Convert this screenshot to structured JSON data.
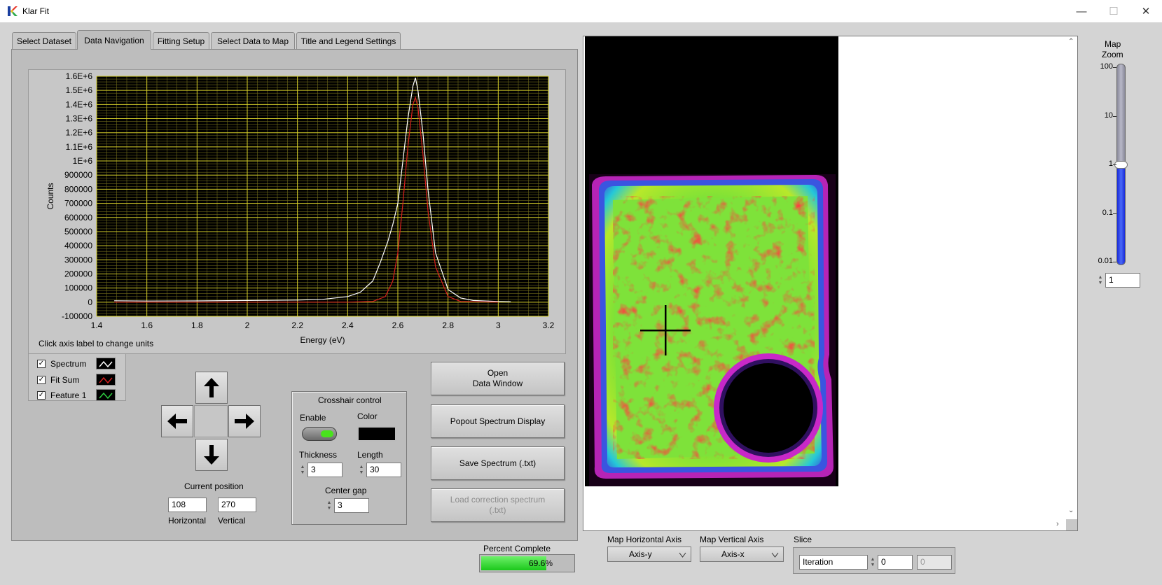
{
  "window": {
    "title": "Klar Fit",
    "minimize": "—",
    "maximize": "☐",
    "close": "✕"
  },
  "tabs": [
    "Select Dataset",
    "Data Navigation",
    "Fitting Setup",
    "Select Data to Map",
    "Title and Legend Settings"
  ],
  "chart_data": {
    "type": "line",
    "xlabel": "Energy (eV)",
    "ylabel": "Counts",
    "xlim": [
      1.4,
      3.2
    ],
    "ylim": [
      -100000,
      1600000
    ],
    "x_ticks": [
      "1.4",
      "1.6",
      "1.8",
      "2",
      "2.2",
      "2.4",
      "2.6",
      "2.8",
      "3",
      "3.2"
    ],
    "y_ticks": [
      "-100000",
      "0",
      "100000",
      "200000",
      "300000",
      "400000",
      "500000",
      "600000",
      "700000",
      "800000",
      "900000",
      "1E+6",
      "1.1E+6",
      "1.2E+6",
      "1.3E+6",
      "1.4E+6",
      "1.5E+6",
      "1.6E+6"
    ],
    "grid": true,
    "series": [
      {
        "name": "Spectrum",
        "color": "#ffffff",
        "x": [
          1.47,
          1.6,
          1.8,
          2.0,
          2.2,
          2.3,
          2.4,
          2.45,
          2.5,
          2.53,
          2.56,
          2.58,
          2.6,
          2.62,
          2.64,
          2.66,
          2.67,
          2.68,
          2.7,
          2.72,
          2.75,
          2.8,
          2.85,
          2.9,
          3.0,
          3.05
        ],
        "y": [
          10000,
          8000,
          9000,
          12000,
          15000,
          20000,
          40000,
          70000,
          150000,
          280000,
          430000,
          550000,
          700000,
          1000000,
          1300000,
          1530000,
          1590000,
          1500000,
          1200000,
          800000,
          350000,
          90000,
          30000,
          12000,
          5000,
          3000
        ]
      },
      {
        "name": "Fit Sum",
        "color": "#d81e1e",
        "x": [
          1.47,
          2.0,
          2.4,
          2.5,
          2.55,
          2.58,
          2.6,
          2.62,
          2.64,
          2.66,
          2.67,
          2.68,
          2.7,
          2.72,
          2.75,
          2.8,
          2.85,
          3.0
        ],
        "y": [
          0,
          0,
          0,
          5000,
          40000,
          150000,
          350000,
          700000,
          1100000,
          1400000,
          1450000,
          1380000,
          1050000,
          650000,
          250000,
          40000,
          5000,
          0
        ]
      }
    ],
    "note_text": "Click axis label to change units"
  },
  "legend": [
    {
      "label": "Spectrum",
      "color": "#ffffff"
    },
    {
      "label": "Fit Sum",
      "color": "#d81e1e"
    },
    {
      "label": "Feature 1",
      "color": "#2ecc40"
    }
  ],
  "position": {
    "caption": "Current position",
    "horizontal": "108",
    "vertical": "270",
    "horizontal_label": "Horizontal",
    "vertical_label": "Vertical"
  },
  "crosshair": {
    "title": "Crosshair control",
    "enable_label": "Enable",
    "color_label": "Color",
    "thickness_label": "Thickness",
    "thickness": "3",
    "length_label": "Length",
    "length": "30",
    "center_gap_label": "Center gap",
    "center_gap": "3"
  },
  "buttons": {
    "open_data": [
      "Open",
      "Data Window"
    ],
    "popout": "Popout Spectrum Display",
    "save": "Save Spectrum (.txt)",
    "load_correction": [
      "Load correction spectrum",
      "(.txt)"
    ]
  },
  "progress": {
    "label": "Percent Complete",
    "value_text": "69.6%",
    "fraction": 0.696
  },
  "map_axes": {
    "horizontal_label": "Map Horizontal Axis",
    "horizontal_value": "Axis-y",
    "vertical_label": "Map Vertical Axis",
    "vertical_value": "Axis-x"
  },
  "slice": {
    "label": "Slice",
    "name": "Iteration",
    "index": "0",
    "extra": "0"
  },
  "zoom": {
    "title_line1": "Map",
    "title_line2": "Zoom",
    "ticks": [
      "100",
      "10",
      "1",
      "0.1",
      "0.01"
    ],
    "value": "1"
  }
}
